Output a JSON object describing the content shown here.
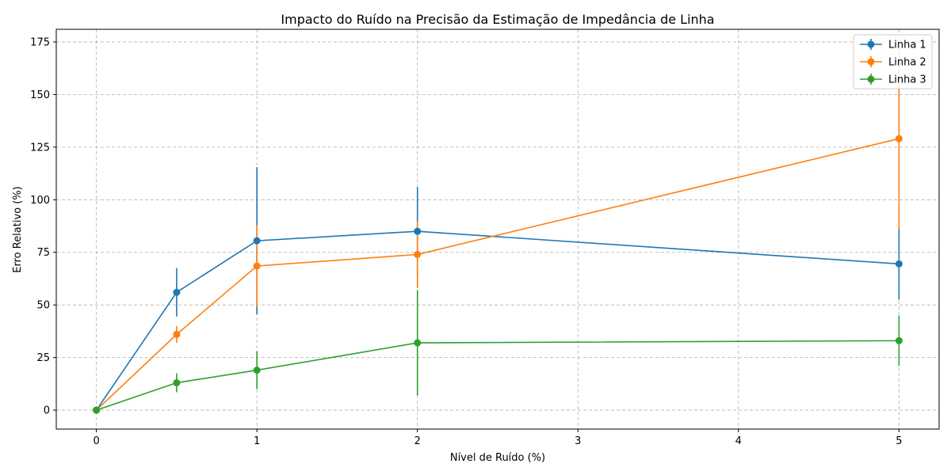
{
  "chart_data": {
    "type": "line",
    "title": "Impacto do Ruído na Precisão da Estimação de Impedância de Linha",
    "xlabel": "Nível de Ruído (%)",
    "ylabel": "Erro Relativo (%)",
    "xlim": [
      -0.25,
      5.25
    ],
    "ylim": [
      -9,
      181
    ],
    "xticks": [
      0,
      1,
      2,
      3,
      4,
      5
    ],
    "xtick_labels": [
      "0",
      "1",
      "2",
      "3",
      "4",
      "5"
    ],
    "yticks": [
      0,
      25,
      50,
      75,
      100,
      125,
      150,
      175
    ],
    "ytick_labels": [
      "0",
      "25",
      "50",
      "75",
      "100",
      "125",
      "150",
      "175"
    ],
    "grid": true,
    "legend_position": "upper right",
    "x": [
      0,
      0.5,
      1,
      2,
      5
    ],
    "series": [
      {
        "name": "Linha 1",
        "color": "#1f77b4",
        "values": [
          0,
          56,
          80.5,
          85,
          69.5
        ],
        "errors": [
          0,
          11.5,
          35,
          21,
          17
        ]
      },
      {
        "name": "Linha 2",
        "color": "#ff7f0e",
        "values": [
          0,
          36,
          68.5,
          74,
          129
        ],
        "errors": [
          0,
          4,
          19.5,
          16,
          43
        ]
      },
      {
        "name": "Linha 3",
        "color": "#2ca02c",
        "values": [
          0,
          13,
          19,
          32,
          33
        ],
        "errors": [
          0,
          4.5,
          9,
          25,
          12
        ]
      }
    ]
  }
}
